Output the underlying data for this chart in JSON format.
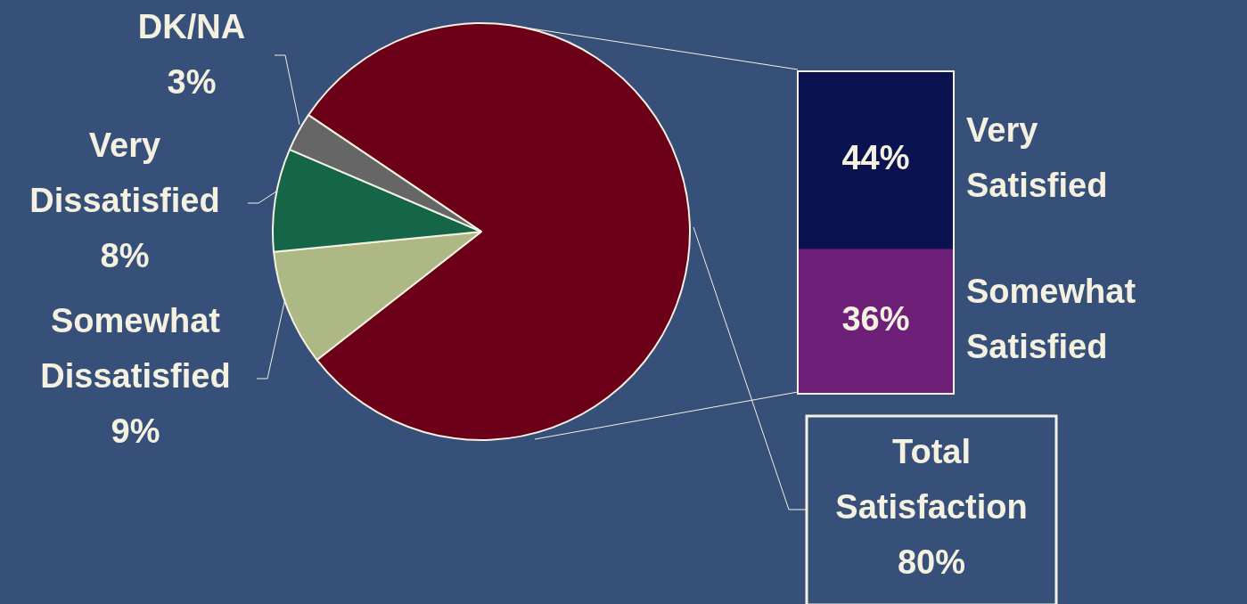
{
  "chart_data": [
    {
      "type": "pie",
      "categories": [
        "Total Satisfaction",
        "Somewhat Dissatisfied",
        "Very Dissatisfied",
        "DK/NA"
      ],
      "values": [
        80,
        9,
        8,
        3
      ],
      "colors": [
        "#6d0019",
        "#adb884",
        "#156649",
        "#666666"
      ],
      "value_labels": [
        "80%",
        "9%",
        "8%",
        "3%"
      ]
    },
    {
      "type": "bar",
      "stacked": true,
      "categories": [
        null
      ],
      "tick_labels": false,
      "series": [
        {
          "name": "Somewhat Satisfied",
          "color": "#6e1f78",
          "values": [
            36
          ],
          "value_labels": [
            "36%"
          ]
        },
        {
          "name": "Very Satisfied",
          "color": "#0b1250",
          "values": [
            44
          ],
          "value_labels": [
            "44%"
          ]
        }
      ]
    }
  ]
}
